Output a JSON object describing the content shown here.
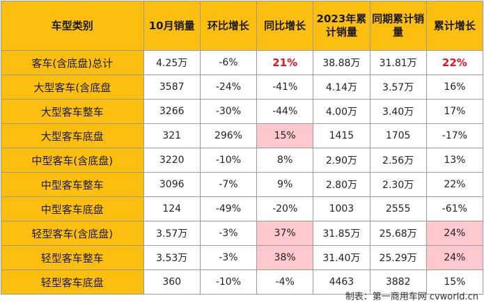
{
  "headers": [
    "车型类别",
    "10月销量",
    "环比增长",
    "同比增长",
    "2023年累计销量",
    "同期累计销量",
    "累计增长"
  ],
  "rows": [
    {
      "category": "客车(含底盘)总计",
      "oct_sales": "4.25万",
      "mom": "-6%",
      "yoy": "21%",
      "ytd_2023": "38.88万",
      "ytd_prev": "31.81万",
      "ytd_growth": "22%"
    },
    {
      "category": "大型客车(含底盘",
      "oct_sales": "3587",
      "mom": "-24%",
      "yoy": "-41%",
      "ytd_2023": "4.14万",
      "ytd_prev": "3.57万",
      "ytd_growth": "16%"
    },
    {
      "category": "大型客车整车",
      "oct_sales": "3266",
      "mom": "-30%",
      "yoy": "-44%",
      "ytd_2023": "4.00万",
      "ytd_prev": "3.40万",
      "ytd_growth": "17%"
    },
    {
      "category": "大型客车底盘",
      "oct_sales": "321",
      "mom": "296%",
      "yoy": "15%",
      "ytd_2023": "1415",
      "ytd_prev": "1705",
      "ytd_growth": "-17%"
    },
    {
      "category": "中型客车(含底盘)",
      "oct_sales": "3220",
      "mom": "-10%",
      "yoy": "8%",
      "ytd_2023": "2.90万",
      "ytd_prev": "2.56万",
      "ytd_growth": "13%"
    },
    {
      "category": "中型客车整车",
      "oct_sales": "3096",
      "mom": "-7%",
      "yoy": "9%",
      "ytd_2023": "2.80万",
      "ytd_prev": "2.30万",
      "ytd_growth": "22%"
    },
    {
      "category": "中型客车底盘",
      "oct_sales": "124",
      "mom": "-49%",
      "yoy": "-20%",
      "ytd_2023": "1003",
      "ytd_prev": "2555",
      "ytd_growth": "-61%"
    },
    {
      "category": "轻型客车(含底盘)",
      "oct_sales": "3.57万",
      "mom": "-3%",
      "yoy": "37%",
      "ytd_2023": "31.85万",
      "ytd_prev": "25.68万",
      "ytd_growth": "24%"
    },
    {
      "category": "轻型客车整车",
      "oct_sales": "3.53万",
      "mom": "-3%",
      "yoy": "38%",
      "ytd_2023": "31.40万",
      "ytd_prev": "25.29万",
      "ytd_growth": "24%"
    },
    {
      "category": "轻型客车底盘",
      "oct_sales": "360",
      "mom": "-10%",
      "yoy": "-4%",
      "ytd_2023": "4463",
      "ytd_prev": "3882",
      "ytd_growth": "15%"
    }
  ],
  "source": "制表：第一商用车网 cvworld.cn",
  "colors": {
    "header_bg": "#fdbf0f",
    "highlight_bg": "#ffc7ce",
    "emphasis_text": "#e8141b",
    "border": "#9a9a9a"
  }
}
